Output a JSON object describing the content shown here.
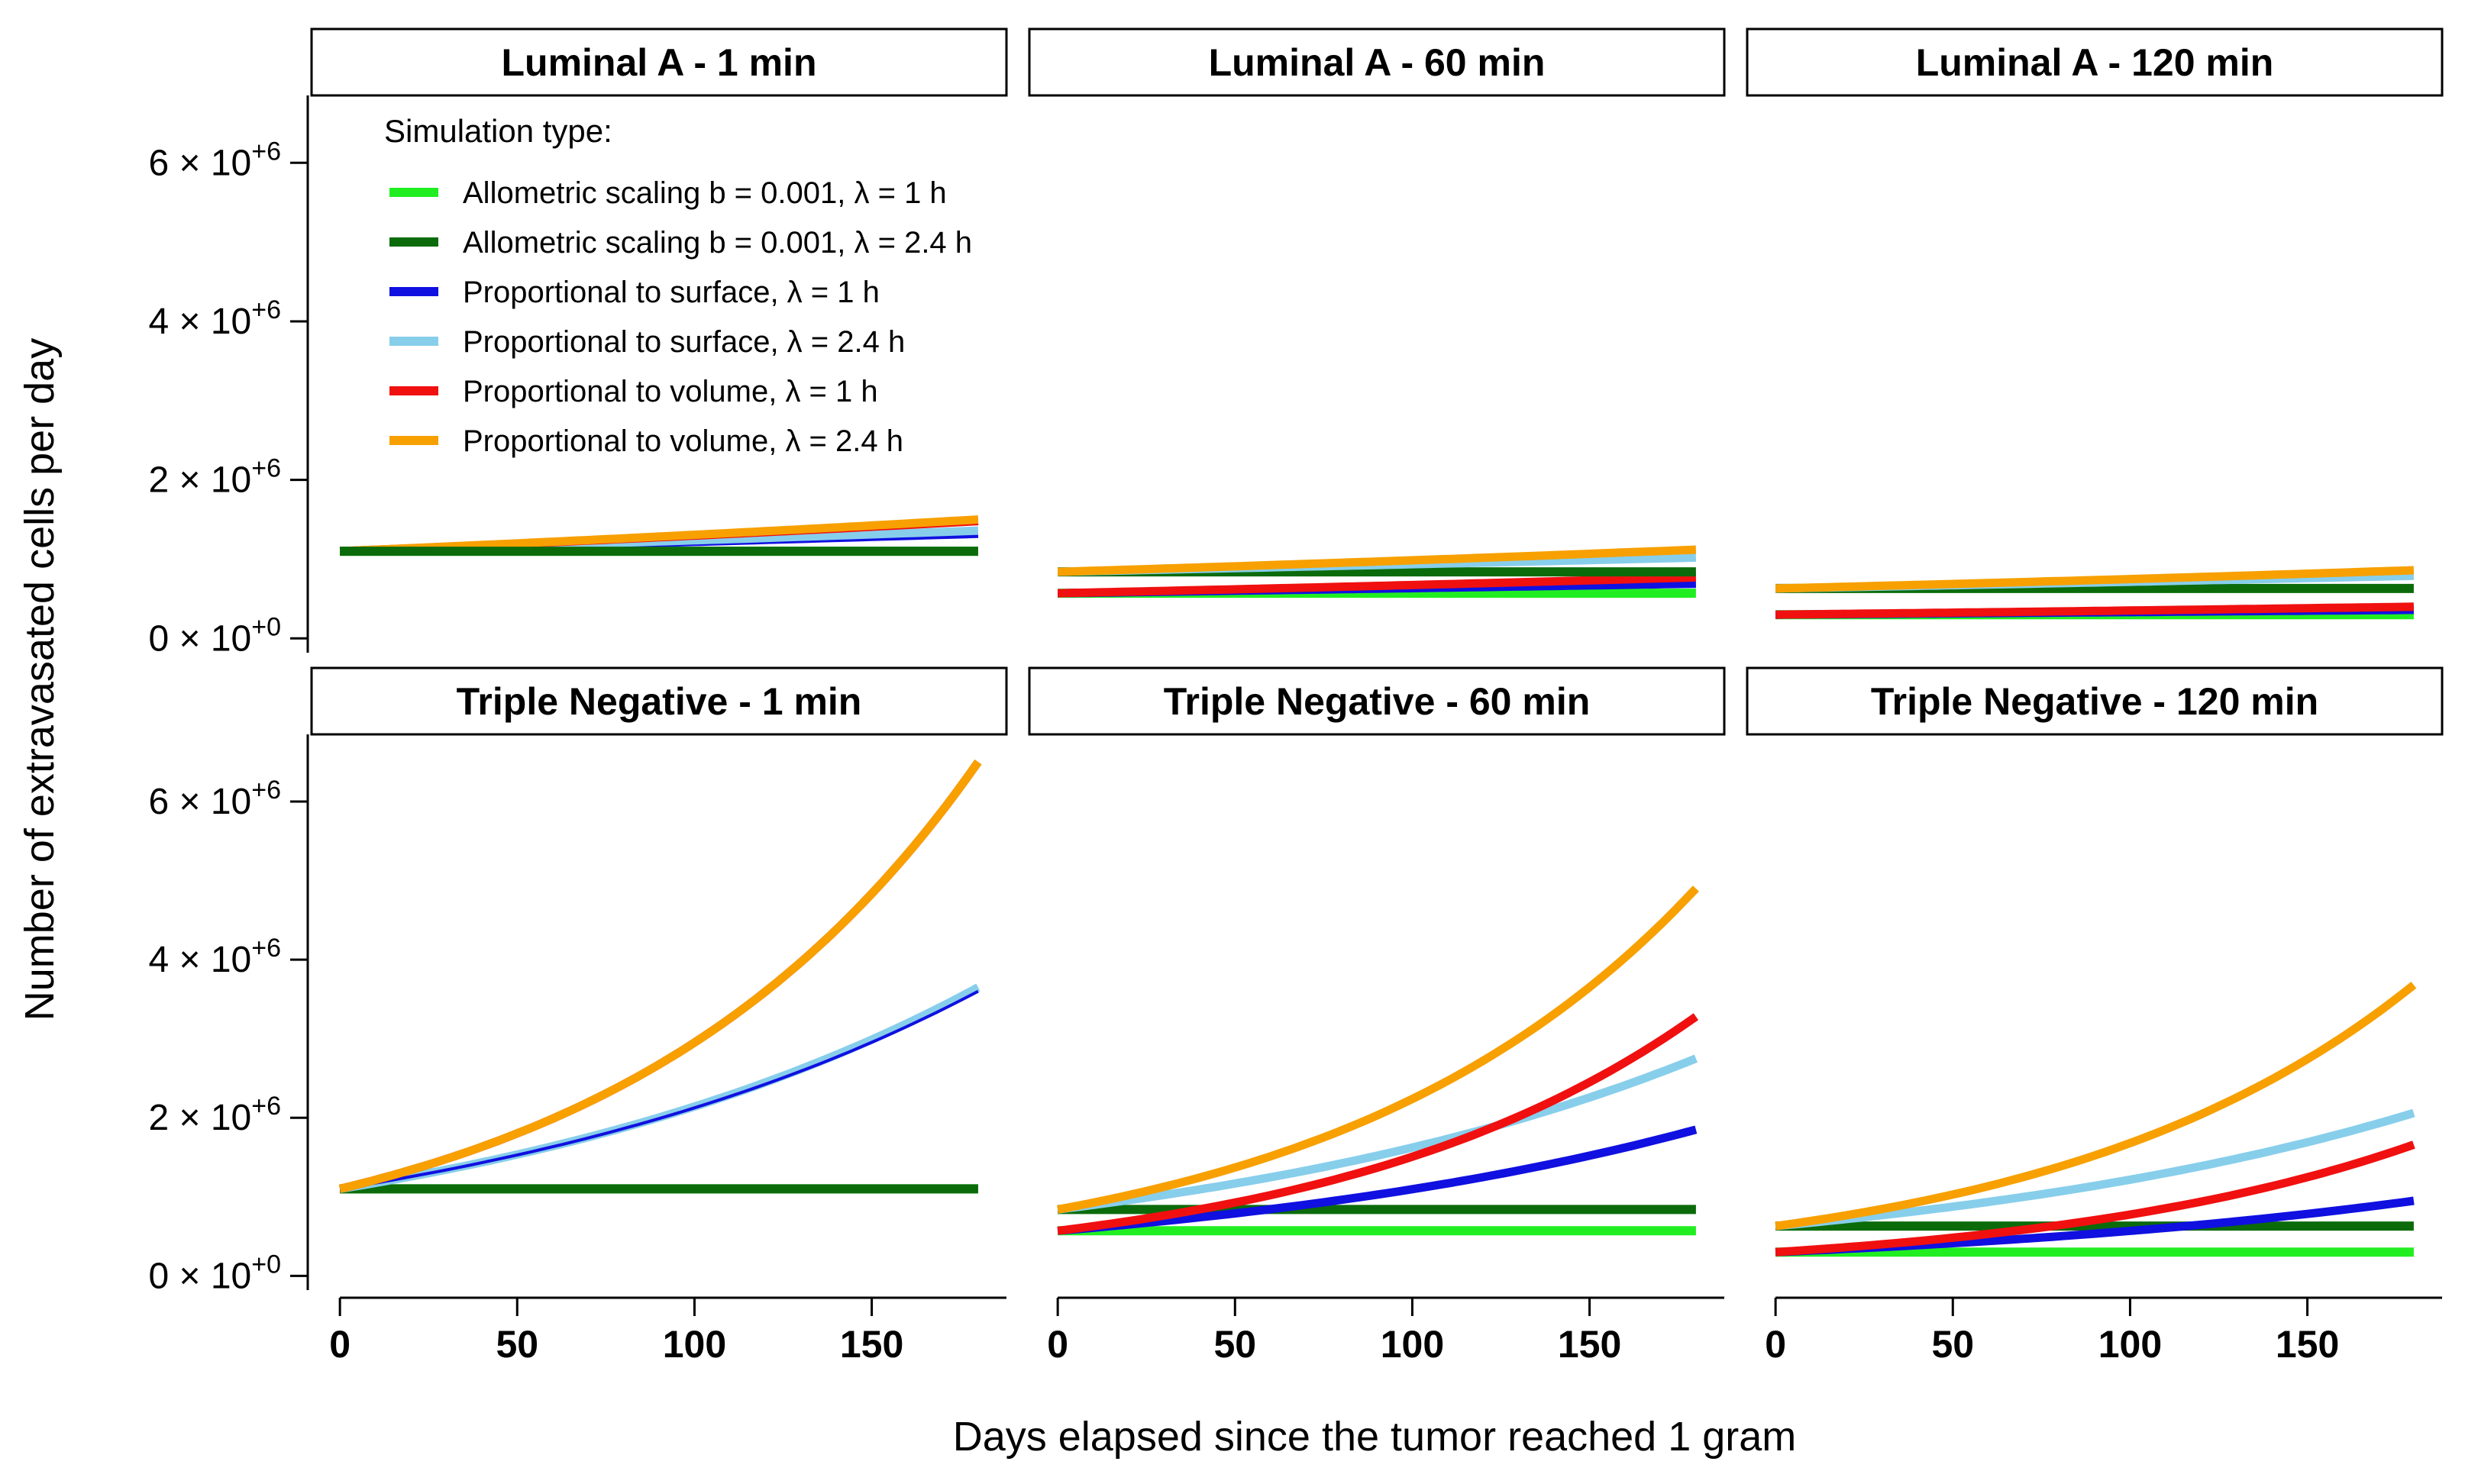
{
  "chart_data": {
    "type": "line",
    "xlabel": "Days elapsed since the tumor reached 1 gram",
    "ylabel": "Number of extravasated cells per day",
    "xlim": [
      -8,
      188
    ],
    "ylim": [
      -0.18,
      6.85
    ],
    "x_ticks": [
      0,
      50,
      100,
      150
    ],
    "x_tick_labels": [
      "0",
      "50",
      "100",
      "150"
    ],
    "y_ticks": [
      0,
      2,
      4,
      6
    ],
    "y_tick_labels": [
      {
        "base": "0 × 10",
        "exp": "+0"
      },
      {
        "base": "2 × 10",
        "exp": "+6"
      },
      {
        "base": "4 × 10",
        "exp": "+6"
      },
      {
        "base": "6 × 10",
        "exp": "+6"
      }
    ],
    "y_unit": "×10^6 cells/day",
    "legend": {
      "title": "Simulation type:",
      "position": "top-left inside first panel",
      "entries": [
        {
          "id": "allo1",
          "label": "Allometric scaling b = 0.001, λ = 1 h",
          "color": "#21ee21"
        },
        {
          "id": "allo24",
          "label": "Allometric scaling b = 0.001, λ = 2.4 h",
          "color": "#0b6b0b"
        },
        {
          "id": "surf1",
          "label": "Proportional to surface, λ = 1 h",
          "color": "#1010e0"
        },
        {
          "id": "surf24",
          "label": "Proportional to surface, λ = 2.4 h",
          "color": "#87ceeb"
        },
        {
          "id": "vol1",
          "label": "Proportional to volume, λ = 1 h",
          "color": "#f01010"
        },
        {
          "id": "vol24",
          "label": "Proportional to volume, λ = 2.4 h",
          "color": "#f7a000"
        }
      ]
    },
    "x_range": [
      0,
      180
    ],
    "panels": [
      {
        "id": "la1",
        "title": "Luminal A - 1 min",
        "row": 0,
        "col": 0,
        "series": [
          {
            "id": "allo1",
            "start": 1.1,
            "end": 1.1
          },
          {
            "id": "surf1",
            "start": 1.1,
            "end": 1.32
          },
          {
            "id": "surf24",
            "start": 1.1,
            "end": 1.36
          },
          {
            "id": "vol1",
            "start": 1.1,
            "end": 1.48
          },
          {
            "id": "vol24",
            "start": 1.1,
            "end": 1.5
          },
          {
            "id": "allo24",
            "start": 1.1,
            "end": 1.1
          }
        ]
      },
      {
        "id": "la60",
        "title": "Luminal A - 60 min",
        "row": 0,
        "col": 1,
        "series": [
          {
            "id": "allo1",
            "start": 0.57,
            "end": 0.57
          },
          {
            "id": "surf1",
            "start": 0.57,
            "end": 0.69
          },
          {
            "id": "vol1",
            "start": 0.57,
            "end": 0.77
          },
          {
            "id": "allo24",
            "start": 0.84,
            "end": 0.84
          },
          {
            "id": "surf24",
            "start": 0.84,
            "end": 1.02
          },
          {
            "id": "vol24",
            "start": 0.84,
            "end": 1.12
          }
        ]
      },
      {
        "id": "la120",
        "title": "Luminal A - 120 min",
        "row": 0,
        "col": 2,
        "series": [
          {
            "id": "allo1",
            "start": 0.3,
            "end": 0.3
          },
          {
            "id": "surf1",
            "start": 0.3,
            "end": 0.36
          },
          {
            "id": "vol1",
            "start": 0.3,
            "end": 0.4
          },
          {
            "id": "allo24",
            "start": 0.63,
            "end": 0.63
          },
          {
            "id": "surf24",
            "start": 0.63,
            "end": 0.79
          },
          {
            "id": "vol24",
            "start": 0.63,
            "end": 0.86
          }
        ]
      },
      {
        "id": "tn1",
        "title": "Triple Negative - 1 min",
        "row": 1,
        "col": 0,
        "series": [
          {
            "id": "allo1",
            "start": 1.1,
            "end": 1.1
          },
          {
            "id": "allo24",
            "start": 1.1,
            "end": 1.1
          },
          {
            "id": "surf24",
            "start": 1.1,
            "end": 3.65
          },
          {
            "id": "surf1",
            "start": 1.1,
            "end": 3.6
          },
          {
            "id": "vol1",
            "start": 1.1,
            "end": 6.5
          },
          {
            "id": "vol24",
            "start": 1.1,
            "end": 6.5
          }
        ]
      },
      {
        "id": "tn60",
        "title": "Triple Negative - 60 min",
        "row": 1,
        "col": 1,
        "series": [
          {
            "id": "allo1",
            "start": 0.57,
            "end": 0.57
          },
          {
            "id": "allo24",
            "start": 0.84,
            "end": 0.84
          },
          {
            "id": "surf1",
            "start": 0.57,
            "end": 1.85
          },
          {
            "id": "surf24",
            "start": 0.84,
            "end": 2.75
          },
          {
            "id": "vol1",
            "start": 0.57,
            "end": 3.28
          },
          {
            "id": "vol24",
            "start": 0.84,
            "end": 4.9
          }
        ]
      },
      {
        "id": "tn120",
        "title": "Triple Negative - 120 min",
        "row": 1,
        "col": 2,
        "series": [
          {
            "id": "allo1",
            "start": 0.3,
            "end": 0.3
          },
          {
            "id": "allo24",
            "start": 0.63,
            "end": 0.63
          },
          {
            "id": "surf1",
            "start": 0.3,
            "end": 0.95
          },
          {
            "id": "surf24",
            "start": 0.63,
            "end": 2.06
          },
          {
            "id": "vol1",
            "start": 0.3,
            "end": 1.66
          },
          {
            "id": "vol24",
            "start": 0.63,
            "end": 3.68
          }
        ]
      }
    ]
  }
}
